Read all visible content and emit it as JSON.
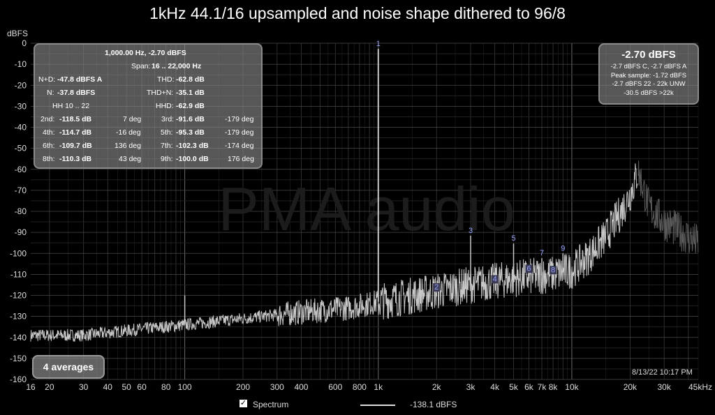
{
  "chart_data": {
    "type": "line",
    "title": "1kHz 44.1/16 upsampled and noise shape dithered to 96/8",
    "ylabel": "dBFS",
    "xscale": "log",
    "xlim": [
      16,
      45000
    ],
    "ylim": [
      -160,
      0
    ],
    "grid": true,
    "x_tick_labels": [
      "16",
      "20",
      "30",
      "40",
      "50",
      "60",
      "80",
      "100",
      "200",
      "300",
      "400",
      "600",
      "800",
      "1k",
      "2k",
      "3k",
      "4k",
      "5k",
      "6k",
      "7k",
      "8k",
      "10k",
      "20k",
      "30k",
      "45kHz"
    ],
    "x_tick_values": [
      16,
      20,
      30,
      40,
      50,
      60,
      80,
      100,
      200,
      300,
      400,
      600,
      800,
      1000,
      2000,
      3000,
      4000,
      5000,
      6000,
      7000,
      8000,
      10000,
      20000,
      30000,
      45000
    ],
    "y_ticks": [
      0,
      -10,
      -20,
      -30,
      -40,
      -50,
      -60,
      -70,
      -80,
      -90,
      -100,
      -110,
      -120,
      -130,
      -140,
      -150,
      -160
    ],
    "watermark": "PMA audio",
    "harmonic_markers": [
      {
        "label": "1",
        "x": 1000,
        "y": -2.7
      },
      {
        "label": "2",
        "x": 2000,
        "y": -118.5
      },
      {
        "label": "3",
        "x": 3000,
        "y": -91.6
      },
      {
        "label": "4",
        "x": 4000,
        "y": -114.7
      },
      {
        "label": "5",
        "x": 5000,
        "y": -95.3
      },
      {
        "label": "6",
        "x": 6000,
        "y": -109.7
      },
      {
        "label": "7",
        "x": 7000,
        "y": -102.3
      },
      {
        "label": "8",
        "x": 8000,
        "y": -110.3
      },
      {
        "label": "9",
        "x": 9000,
        "y": -100.0
      }
    ],
    "series": [
      {
        "name": "Spectrum",
        "noise_floor": [
          [
            16,
            -139
          ],
          [
            30,
            -139
          ],
          [
            60,
            -136
          ],
          [
            100,
            -134
          ],
          [
            200,
            -131
          ],
          [
            400,
            -128
          ],
          [
            700,
            -126
          ],
          [
            1000,
            -123
          ],
          [
            2000,
            -118
          ],
          [
            3000,
            -115
          ],
          [
            5000,
            -112
          ],
          [
            8000,
            -110
          ],
          [
            10000,
            -108
          ],
          [
            12000,
            -102
          ],
          [
            15000,
            -92
          ],
          [
            18000,
            -80
          ],
          [
            20000,
            -72
          ],
          [
            22000,
            -61
          ],
          [
            25000,
            -78
          ],
          [
            30000,
            -85
          ],
          [
            45000,
            -95
          ]
        ],
        "spikes": [
          [
            100,
            -120
          ],
          [
            1000,
            -2.7
          ],
          [
            3000,
            -91.6
          ],
          [
            5000,
            -95.3
          ],
          [
            7000,
            -102.3
          ],
          [
            9000,
            -100.0
          ]
        ]
      }
    ]
  },
  "stats_panel": {
    "header1": "1,000.00 Hz, -2.70 dBFS",
    "span_label": "Span:",
    "span_value": "16 .. 22,000 Hz",
    "nd_label": "N+D:",
    "nd_value": "-47.8 dBFS A",
    "n_label": "N:",
    "n_value": "-37.8 dBFS",
    "hh_label": "HH 10 .. 22",
    "thd_label": "THD:",
    "thd_value": "-62.8 dB",
    "thdn_label": "THD+N:",
    "thdn_value": "-35.1 dB",
    "hhd_label": "HHD:",
    "hhd_value": "-62.9 dB",
    "rows": [
      {
        "l1": "2nd:",
        "v1": "-118.5 dB",
        "p1": "7 deg",
        "l2": "3rd:",
        "v2": "-91.6 dB",
        "p2": "-179 deg"
      },
      {
        "l1": "4th:",
        "v1": "-114.7 dB",
        "p1": "-16 deg",
        "l2": "5th:",
        "v2": "-95.3 dB",
        "p2": "-179 deg"
      },
      {
        "l1": "6th:",
        "v1": "-109.7 dB",
        "p1": "136 deg",
        "l2": "7th:",
        "v2": "-102.3 dB",
        "p2": "-174 deg"
      },
      {
        "l1": "8th:",
        "v1": "-110.3 dB",
        "p1": "43 deg",
        "l2": "9th:",
        "v2": "-100.0 dB",
        "p2": "176 deg"
      }
    ]
  },
  "level_panel": {
    "big": "-2.70 dBFS",
    "line1": "-2.7 dBFS C, -2.7 dBFS A",
    "line2": "Peak sample: -1.72 dBFS",
    "line3": "-2.7 dBFS 22 - 22k UNW",
    "line4": "-30.5 dBFS >22k"
  },
  "averages_button": "4 averages",
  "timestamp": "8/13/22 10:17 PM",
  "legend": {
    "checkbox_mark": "✓",
    "spectrum_label": "Spectrum",
    "level_value": "-138.1 dBFS"
  },
  "colors": {
    "background": "#000000",
    "trace": "#c8c8c8",
    "trace_above_22k": "#5a5a5a",
    "grid": "#3a3a3a",
    "marker_label": "#9aa8ff"
  }
}
